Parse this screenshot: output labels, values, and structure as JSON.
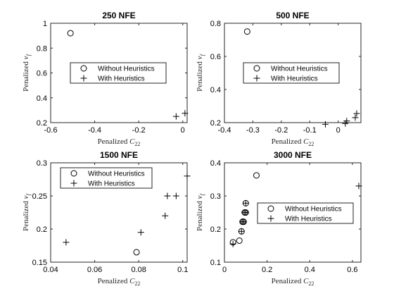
{
  "chart_data": [
    {
      "type": "scatter",
      "title": "250 NFE",
      "xlabel": "Penalized C",
      "xlabel_sub": "22",
      "ylabel": "Penalized v",
      "ylabel_sub": "f",
      "xlim": [
        -0.6,
        0.02
      ],
      "ylim": [
        0.2,
        1.0
      ],
      "xticks": [
        -0.6,
        -0.4,
        -0.2,
        0
      ],
      "xtick_labels": [
        "-0.6",
        "-0.4",
        "-0.2",
        "0"
      ],
      "yticks": [
        0.2,
        0.4,
        0.6,
        0.8,
        1.0
      ],
      "ytick_labels": [
        "0.2",
        "0.4",
        "0.6",
        "0.8",
        "1"
      ],
      "legend_position": "middle",
      "series": [
        {
          "name": "Without Heuristics",
          "marker": "circle",
          "points": [
            [
              -0.51,
              0.92
            ]
          ]
        },
        {
          "name": "With Heuristics",
          "marker": "plus",
          "points": [
            [
              -0.03,
              0.25
            ],
            [
              0.01,
              0.275
            ]
          ]
        }
      ]
    },
    {
      "type": "scatter",
      "title": "500 NFE",
      "xlabel": "Penalized C",
      "xlabel_sub": "22",
      "ylabel": "Penalized v",
      "ylabel_sub": "f",
      "xlim": [
        -0.4,
        0.08
      ],
      "ylim": [
        0.2,
        0.8
      ],
      "xticks": [
        -0.4,
        -0.3,
        -0.2,
        -0.1,
        0
      ],
      "xtick_labels": [
        "-0.4",
        "-0.3",
        "-0.2",
        "-0.1",
        "0"
      ],
      "yticks": [
        0.2,
        0.4,
        0.6,
        0.8
      ],
      "ytick_labels": [
        "0.2",
        "0.4",
        "0.6",
        "0.8"
      ],
      "legend_position": "middle",
      "series": [
        {
          "name": "Without Heuristics",
          "marker": "circle",
          "points": [
            [
              -0.32,
              0.75
            ]
          ]
        },
        {
          "name": "With Heuristics",
          "marker": "plus",
          "points": [
            [
              -0.045,
              0.19
            ],
            [
              0.025,
              0.195
            ],
            [
              0.03,
              0.21
            ],
            [
              0.06,
              0.23
            ],
            [
              0.065,
              0.255
            ]
          ]
        }
      ]
    },
    {
      "type": "scatter",
      "title": "1500 NFE",
      "xlabel": "Penalized C",
      "xlabel_sub": "22",
      "ylabel": "Penalized v",
      "ylabel_sub": "f",
      "xlim": [
        0.04,
        0.102
      ],
      "ylim": [
        0.15,
        0.3
      ],
      "xticks": [
        0.04,
        0.06,
        0.08,
        0.1
      ],
      "xtick_labels": [
        "0.04",
        "0.06",
        "0.08",
        "0.1"
      ],
      "yticks": [
        0.15,
        0.2,
        0.25,
        0.3
      ],
      "ytick_labels": [
        "0.15",
        "0.2",
        "0.25",
        "0.3"
      ],
      "legend_position": "top",
      "series": [
        {
          "name": "Without Heuristics",
          "marker": "circle",
          "points": [
            [
              0.079,
              0.165
            ]
          ]
        },
        {
          "name": "With Heuristics",
          "marker": "plus",
          "points": [
            [
              0.047,
              0.18
            ],
            [
              0.081,
              0.195
            ],
            [
              0.092,
              0.22
            ],
            [
              0.093,
              0.25
            ],
            [
              0.097,
              0.25
            ],
            [
              0.102,
              0.28
            ]
          ]
        }
      ]
    },
    {
      "type": "scatter",
      "title": "3000 NFE",
      "xlabel": "Penalized C",
      "xlabel_sub": "22",
      "ylabel": "Penalized v",
      "ylabel_sub": "f",
      "xlim": [
        0,
        0.64
      ],
      "ylim": [
        0.1,
        0.4
      ],
      "xticks": [
        0,
        0.2,
        0.4,
        0.6
      ],
      "xtick_labels": [
        "0",
        "0.2",
        "0.4",
        "0.6"
      ],
      "yticks": [
        0.1,
        0.2,
        0.3,
        0.4
      ],
      "ytick_labels": [
        "0.1",
        "0.2",
        "0.3",
        "0.4"
      ],
      "legend_position": "middle-right",
      "series": [
        {
          "name": "Without Heuristics",
          "marker": "circle",
          "points": [
            [
              0.04,
              0.16
            ],
            [
              0.07,
              0.165
            ],
            [
              0.08,
              0.193
            ],
            [
              0.085,
              0.222
            ],
            [
              0.09,
              0.222
            ],
            [
              0.095,
              0.25
            ],
            [
              0.1,
              0.25
            ],
            [
              0.1,
              0.278
            ],
            [
              0.15,
              0.362
            ]
          ]
        },
        {
          "name": "With Heuristics",
          "marker": "plus",
          "points": [
            [
              0.04,
              0.155
            ],
            [
              0.08,
              0.193
            ],
            [
              0.085,
              0.222
            ],
            [
              0.09,
              0.222
            ],
            [
              0.095,
              0.25
            ],
            [
              0.1,
              0.25
            ],
            [
              0.1,
              0.278
            ],
            [
              0.63,
              0.33
            ]
          ]
        }
      ]
    }
  ]
}
